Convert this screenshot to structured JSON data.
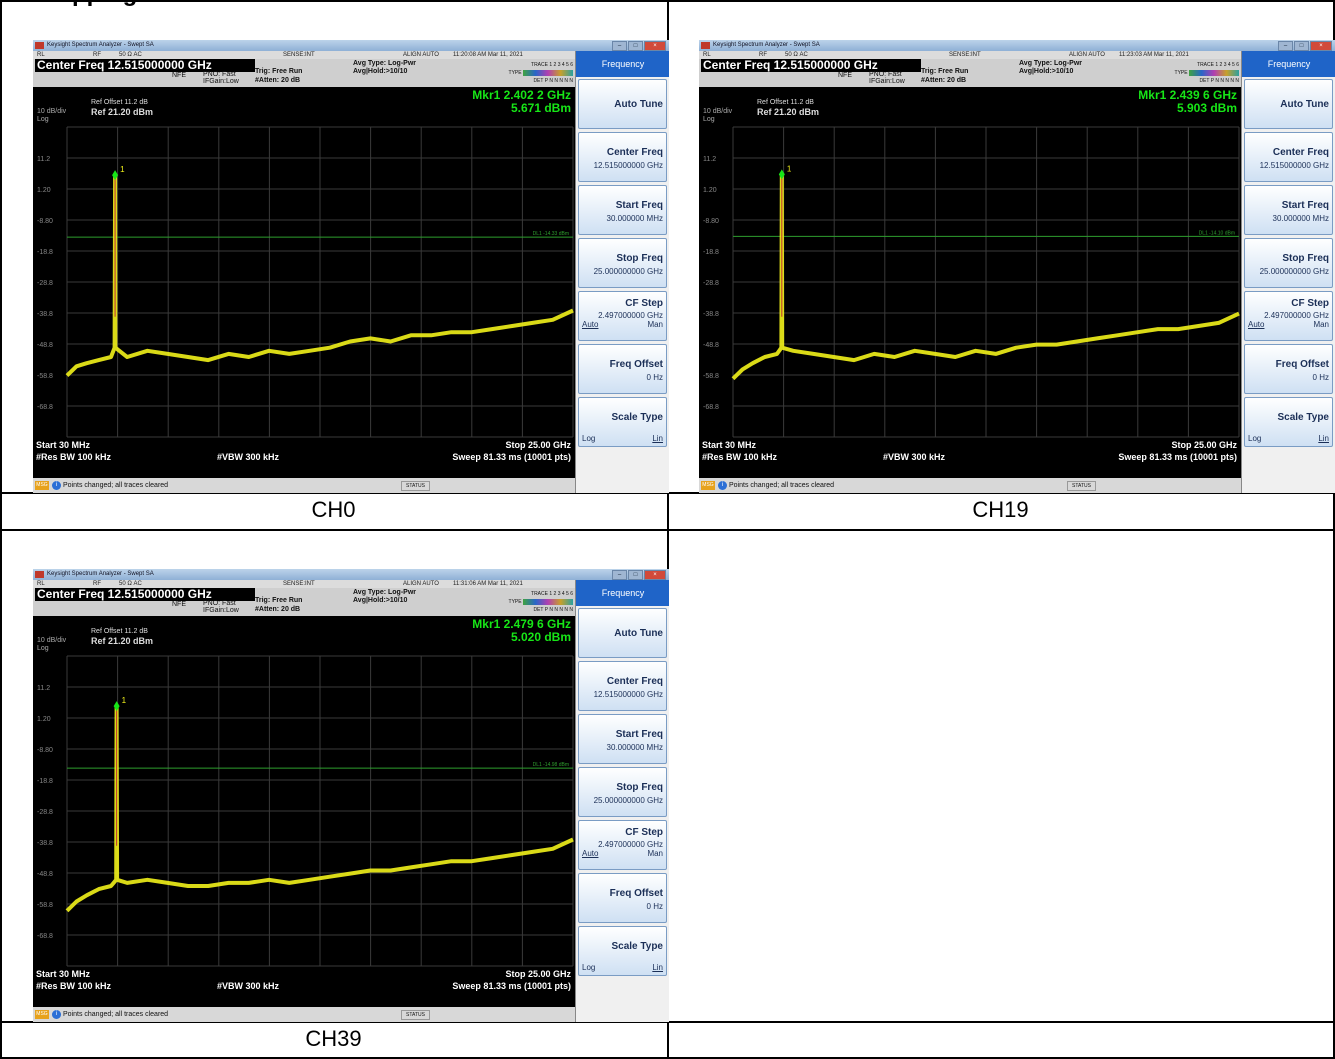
{
  "cut_heading": "Hopping mode",
  "shared": {
    "window_title": "Keysight Spectrum Analyzer - Swept SA",
    "status": {
      "rl": "RL",
      "rf": "RF",
      "ohm": "50 Ω  AC",
      "sense": "SENSE:INT",
      "align": "ALIGN AUTO"
    },
    "center_freq": "Center Freq 12.515000000 GHz",
    "nfe": "NFE",
    "pno": "PNO: Fast",
    "ifgain": "IFGain:Low",
    "trig": "Trig: Free Run",
    "atten": "#Atten: 20 dB",
    "avg_type": "Avg Type: Log-Pwr",
    "avg_hold": "Avg|Hold:>10/10",
    "trace_lbl": "TRACE",
    "type_lbl": "TYPE",
    "det_lbl": "DET",
    "trace_nums": "1 2 3 4 5 6",
    "det_vals": "P N N N N N",
    "ref_offset": "Ref Offset 11.2 dB",
    "scale_div": "10 dB/div",
    "ref_level": "Ref 21.20 dBm",
    "log": "Log",
    "start": "Start 30 MHz",
    "stop": "Stop 25.00 GHz",
    "rbw": "#Res BW 100 kHz",
    "vbw": "#VBW 300 kHz",
    "sweep": "Sweep  81.33 ms (10001 pts)",
    "msg_tag": "MSG",
    "message": "Points changed; all traces cleared",
    "status_lbl": "STATUS",
    "menu": {
      "title": "Frequency",
      "auto_tune": "Auto Tune",
      "center_freq": "Center Freq",
      "center_freq_val": "12.515000000 GHz",
      "start_freq": "Start Freq",
      "start_freq_val": "30.000000 MHz",
      "stop_freq": "Stop Freq",
      "stop_freq_val": "25.000000000 GHz",
      "cf_step": "CF Step",
      "cf_step_val": "2.497000000 GHz",
      "auto": "Auto",
      "man": "Man",
      "freq_offset": "Freq Offset",
      "freq_offset_val": "0 Hz",
      "scale_type": "Scale Type",
      "log": "Log",
      "lin": "Lin"
    },
    "y_tick_labels": [
      "11.2",
      "1.20",
      "-8.80",
      "-18.8",
      "-28.8",
      "-38.8",
      "-48.8",
      "-58.8",
      "-68.8"
    ],
    "colors": {
      "trace": "#f2f21a",
      "marker": "#17e617",
      "dl": "#2e9e2e",
      "grid": "#3a3a3a",
      "menu_title": "#1f64c8"
    }
  },
  "panels": [
    {
      "caption": "CH0",
      "timestamp": "11:20:08 AM Mar 11, 2021",
      "marker_freq": "Mkr1 2.402 2 GHz",
      "marker_amp": "5.671 dBm",
      "display_line": "DL1 -14.33 dBm",
      "chart_data": {
        "type": "line",
        "xlabel": "",
        "ylabel": "",
        "xlim": [
          0.03,
          25.0
        ],
        "ylim": [
          -78.8,
          21.2
        ],
        "x_unit": "GHz",
        "y_unit": "dBm",
        "display_line_dbm": -14.33,
        "marker": {
          "x": 2.4022,
          "y": 5.671,
          "label": "1"
        },
        "series": [
          {
            "values_x": [
              0.03,
              0.5,
              1.0,
              1.6,
              2.2,
              2.38,
              2.4022,
              2.42,
              3.0,
              4,
              5,
              6,
              7,
              8,
              9,
              10,
              11,
              12,
              13,
              14,
              15,
              16,
              17,
              18,
              19,
              20,
              21,
              22,
              23,
              24,
              25.0
            ],
            "values_y": [
              -59,
              -56,
              -55,
              -54,
              -53,
              -50,
              5.671,
              -50,
              -53,
              -51,
              -52,
              -53,
              -54,
              -52,
              -53,
              -51,
              -52,
              -51,
              -50,
              -48,
              -47,
              -48,
              -46,
              -46,
              -45,
              -45,
              -44,
              -43,
              -42,
              -41,
              -38
            ]
          }
        ]
      }
    },
    {
      "caption": "CH19",
      "timestamp": "11:23:03 AM Mar 11, 2021",
      "marker_freq": "Mkr1 2.439 6 GHz",
      "marker_amp": "5.903 dBm",
      "display_line": "DL1 -14.10 dBm",
      "chart_data": {
        "type": "line",
        "xlabel": "",
        "ylabel": "",
        "xlim": [
          0.03,
          25.0
        ],
        "ylim": [
          -78.8,
          21.2
        ],
        "x_unit": "GHz",
        "y_unit": "dBm",
        "display_line_dbm": -14.1,
        "marker": {
          "x": 2.4396,
          "y": 5.903,
          "label": "1"
        },
        "series": [
          {
            "values_x": [
              0.03,
              0.5,
              1.0,
              1.6,
              2.2,
              2.42,
              2.4396,
              2.46,
              3.0,
              4,
              5,
              6,
              7,
              8,
              9,
              10,
              11,
              12,
              13,
              14,
              15,
              16,
              17,
              18,
              19,
              20,
              21,
              22,
              23,
              24,
              25.0
            ],
            "values_y": [
              -60,
              -57,
              -55,
              -53,
              -52,
              -50,
              5.903,
              -50,
              -51,
              -52,
              -53,
              -54,
              -52,
              -53,
              -51,
              -52,
              -53,
              -51,
              -52,
              -50,
              -49,
              -49,
              -48,
              -47,
              -46,
              -45,
              -44,
              -44,
              -43,
              -42,
              -39
            ]
          }
        ]
      }
    },
    {
      "caption": "CH39",
      "timestamp": "11:31:06 AM Mar 11, 2021",
      "marker_freq": "Mkr1 2.479 6 GHz",
      "marker_amp": "5.020 dBm",
      "display_line": "DL1 -14.98 dBm",
      "chart_data": {
        "type": "line",
        "xlabel": "",
        "ylabel": "",
        "xlim": [
          0.03,
          25.0
        ],
        "ylim": [
          -78.8,
          21.2
        ],
        "x_unit": "GHz",
        "y_unit": "dBm",
        "display_line_dbm": -14.98,
        "marker": {
          "x": 2.4796,
          "y": 5.02,
          "label": "1"
        },
        "series": [
          {
            "values_x": [
              0.03,
              0.5,
              1.0,
              1.6,
              2.2,
              2.46,
              2.4796,
              2.5,
              3.0,
              4,
              5,
              6,
              7,
              8,
              9,
              10,
              11,
              12,
              13,
              14,
              15,
              16,
              17,
              18,
              19,
              20,
              21,
              22,
              23,
              24,
              25.0
            ],
            "values_y": [
              -61,
              -58,
              -56,
              -54,
              -53,
              -51,
              5.02,
              -51,
              -52,
              -51,
              -52,
              -53,
              -53,
              -52,
              -52,
              -51,
              -52,
              -51,
              -50,
              -49,
              -48,
              -48,
              -47,
              -46,
              -45,
              -45,
              -44,
              -43,
              -42,
              -41,
              -38
            ]
          }
        ]
      }
    }
  ]
}
